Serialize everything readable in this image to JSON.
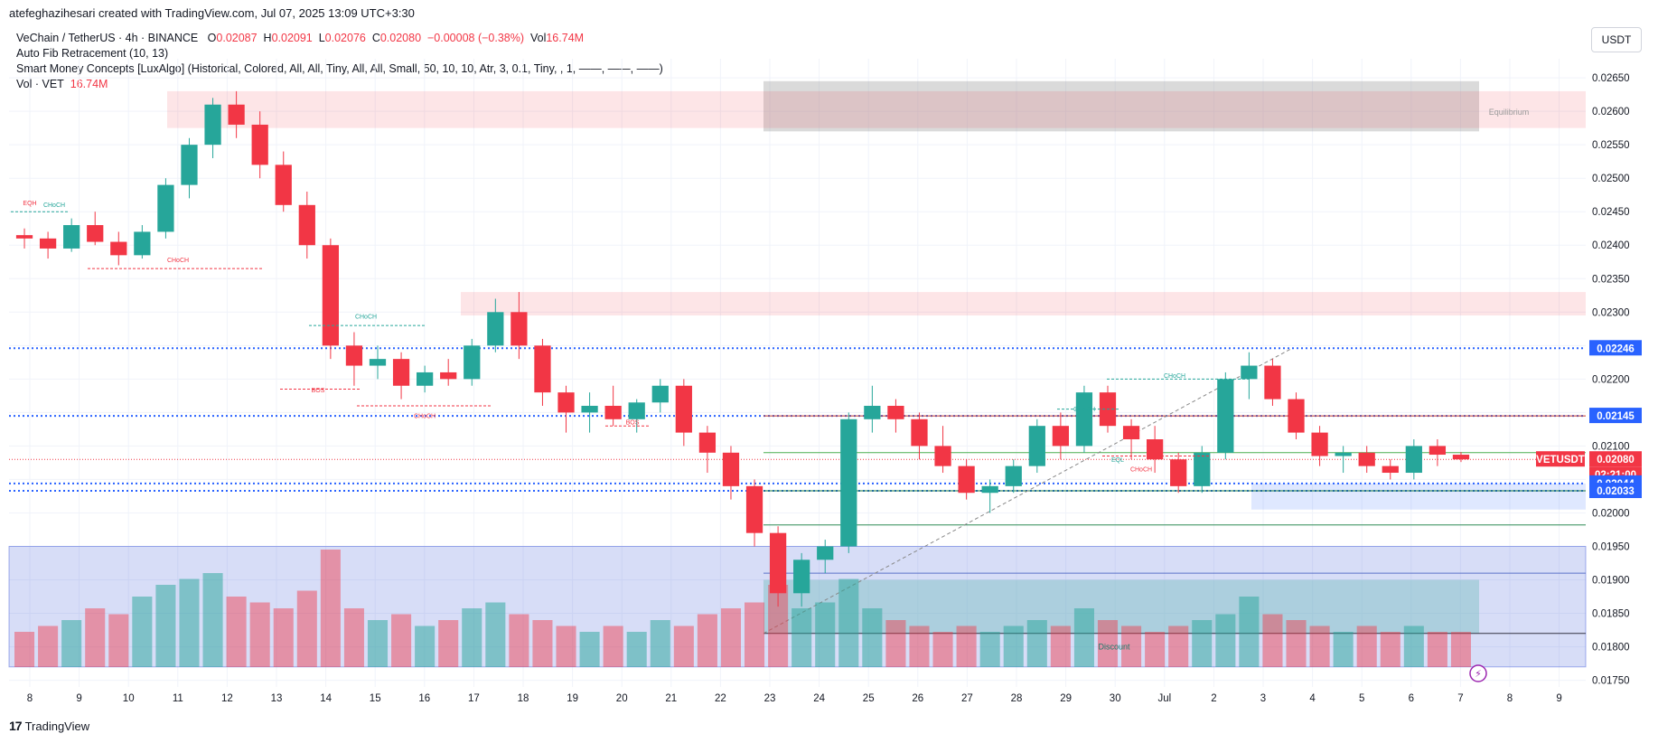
{
  "header": {
    "credit": "atefeghazihesari created with TradingView.com, Jul 07, 2025 13:09 UTC+3:30"
  },
  "legend": {
    "symbol": "VeChain / TetherUS · 4h · BINANCE",
    "o_label": "O",
    "o_value": "0.02087",
    "h_label": "H",
    "h_value": "0.02091",
    "l_label": "L",
    "l_value": "0.02076",
    "c_label": "C",
    "c_value": "0.02080",
    "change": "−0.00008 (−0.38%)",
    "vol_label": "Vol",
    "vol_value": "16.74M",
    "indicator1": "Auto Fib Retracement (10, 13)",
    "indicator2": "Smart Money Concepts [LuxAlgo] (Historical, Colored, All, All, Tiny, All, All, Small, 50, 10, 10, Atr, 3, 0.1, Tiny, , 1, ——, ——, ——)",
    "indicator3_label": "Vol · VET",
    "indicator3_value": "16.74M"
  },
  "currency": "USDT",
  "footer": {
    "brand": "TradingView"
  },
  "colors": {
    "up": "#26a69a",
    "down": "#f23645",
    "dotted": "#2962ff"
  },
  "chart_data": {
    "type": "candlestick",
    "timeframe": "4h",
    "ylim": [
      0.0174,
      0.02665
    ],
    "yticks": [
      "0.02650",
      "0.02600",
      "0.02550",
      "0.02500",
      "0.02450",
      "0.02400",
      "0.02350",
      "0.02300",
      "0.02250",
      "0.02200",
      "0.02150",
      "0.02100",
      "0.02050",
      "0.02000",
      "0.01950",
      "0.01900",
      "0.01850",
      "0.01800",
      "0.01750"
    ],
    "xticks": [
      "8",
      "9",
      "10",
      "11",
      "12",
      "13",
      "14",
      "15",
      "16",
      "17",
      "18",
      "19",
      "20",
      "21",
      "22",
      "23",
      "24",
      "25",
      "26",
      "27",
      "28",
      "29",
      "30",
      "Jul",
      "2",
      "3",
      "4",
      "5",
      "6",
      "7",
      "8",
      "9"
    ],
    "price_labels": [
      {
        "text": "0.02246",
        "value": 0.02246,
        "color": "#2962ff"
      },
      {
        "text": "0.02145",
        "value": 0.02145,
        "color": "#2962ff"
      },
      {
        "text": "VETUSDT",
        "value": 0.0208,
        "color": "#f23645"
      },
      {
        "text": "0.02080",
        "value": 0.0208,
        "color": "#f23645"
      },
      {
        "text": "02:21:00",
        "value": 0.0208,
        "color": "#f23645"
      },
      {
        "text": "0.02044",
        "value": 0.02044,
        "color": "#2962ff"
      },
      {
        "text": "0.02033",
        "value": 0.02033,
        "color": "#2962ff"
      }
    ],
    "zone_labels": [
      "Equilibrium",
      "Discount"
    ],
    "structure_labels": [
      "EQH",
      "CHoCH",
      "CHoCH",
      "CHoCH",
      "BOS",
      "CHoCH",
      "BOS",
      "CHoCH",
      "CHoCH",
      "EQL",
      "CHoCH"
    ],
    "candles_sampled": [
      [
        0.02415,
        0.02425,
        0.02395,
        0.0241
      ],
      [
        0.0241,
        0.0242,
        0.0238,
        0.02395
      ],
      [
        0.02395,
        0.0244,
        0.0239,
        0.0243
      ],
      [
        0.0243,
        0.0245,
        0.024,
        0.02405
      ],
      [
        0.02405,
        0.0242,
        0.0237,
        0.02385
      ],
      [
        0.02385,
        0.0243,
        0.0238,
        0.0242
      ],
      [
        0.0242,
        0.025,
        0.0241,
        0.0249
      ],
      [
        0.0249,
        0.0256,
        0.0247,
        0.0255
      ],
      [
        0.0255,
        0.0262,
        0.0253,
        0.0261
      ],
      [
        0.0261,
        0.0263,
        0.0256,
        0.0258
      ],
      [
        0.0258,
        0.026,
        0.025,
        0.0252
      ],
      [
        0.0252,
        0.0254,
        0.0245,
        0.0246
      ],
      [
        0.0246,
        0.0248,
        0.0238,
        0.024
      ],
      [
        0.024,
        0.0241,
        0.0223,
        0.0225
      ],
      [
        0.0225,
        0.0227,
        0.0219,
        0.0222
      ],
      [
        0.0222,
        0.0225,
        0.022,
        0.0223
      ],
      [
        0.0223,
        0.0224,
        0.0217,
        0.0219
      ],
      [
        0.0219,
        0.0222,
        0.0218,
        0.0221
      ],
      [
        0.0221,
        0.0223,
        0.0219,
        0.022
      ],
      [
        0.022,
        0.0226,
        0.0219,
        0.0225
      ],
      [
        0.0225,
        0.0232,
        0.0224,
        0.023
      ],
      [
        0.023,
        0.0233,
        0.0223,
        0.0225
      ],
      [
        0.0225,
        0.0226,
        0.0216,
        0.0218
      ],
      [
        0.0218,
        0.0219,
        0.0212,
        0.0215
      ],
      [
        0.0215,
        0.0218,
        0.0212,
        0.0216
      ],
      [
        0.0216,
        0.0219,
        0.0213,
        0.0214
      ],
      [
        0.0214,
        0.0217,
        0.0212,
        0.02165
      ],
      [
        0.02165,
        0.022,
        0.0215,
        0.0219
      ],
      [
        0.0219,
        0.022,
        0.021,
        0.0212
      ],
      [
        0.0212,
        0.0213,
        0.0206,
        0.0209
      ],
      [
        0.0209,
        0.021,
        0.0202,
        0.0204
      ],
      [
        0.0204,
        0.0205,
        0.0195,
        0.0197
      ],
      [
        0.0197,
        0.0198,
        0.0186,
        0.0188
      ],
      [
        0.0188,
        0.0194,
        0.0186,
        0.0193
      ],
      [
        0.0193,
        0.0196,
        0.0191,
        0.0195
      ],
      [
        0.0195,
        0.0215,
        0.0194,
        0.0214
      ],
      [
        0.0214,
        0.0219,
        0.0212,
        0.0216
      ],
      [
        0.0216,
        0.0217,
        0.0212,
        0.0214
      ],
      [
        0.0214,
        0.0215,
        0.0208,
        0.021
      ],
      [
        0.021,
        0.0213,
        0.0206,
        0.0207
      ],
      [
        0.0207,
        0.0208,
        0.0202,
        0.0203
      ],
      [
        0.0203,
        0.0205,
        0.02,
        0.0204
      ],
      [
        0.0204,
        0.0208,
        0.0203,
        0.0207
      ],
      [
        0.0207,
        0.0214,
        0.0206,
        0.0213
      ],
      [
        0.0213,
        0.0215,
        0.0208,
        0.021
      ],
      [
        0.021,
        0.0219,
        0.0209,
        0.0218
      ],
      [
        0.0218,
        0.0219,
        0.0212,
        0.0213
      ],
      [
        0.0213,
        0.0214,
        0.0208,
        0.0211
      ],
      [
        0.0211,
        0.0213,
        0.0206,
        0.0208
      ],
      [
        0.0208,
        0.0209,
        0.0203,
        0.0204
      ],
      [
        0.0204,
        0.021,
        0.0203,
        0.0209
      ],
      [
        0.0209,
        0.0221,
        0.0208,
        0.022
      ],
      [
        0.022,
        0.0224,
        0.0217,
        0.0222
      ],
      [
        0.0222,
        0.0223,
        0.0216,
        0.0217
      ],
      [
        0.0217,
        0.0218,
        0.0211,
        0.0212
      ],
      [
        0.0212,
        0.0213,
        0.0207,
        0.02085
      ],
      [
        0.02085,
        0.021,
        0.0206,
        0.0209
      ],
      [
        0.0209,
        0.021,
        0.0206,
        0.0207
      ],
      [
        0.0207,
        0.0208,
        0.0205,
        0.0206
      ],
      [
        0.0206,
        0.0211,
        0.0205,
        0.021
      ],
      [
        0.021,
        0.0211,
        0.0207,
        0.02087
      ],
      [
        0.02087,
        0.02091,
        0.02076,
        0.0208
      ]
    ],
    "volume_sampled": [
      0.3,
      0.35,
      0.4,
      0.5,
      0.45,
      0.6,
      0.7,
      0.75,
      0.8,
      0.6,
      0.55,
      0.5,
      0.65,
      1.0,
      0.5,
      0.4,
      0.45,
      0.35,
      0.4,
      0.5,
      0.55,
      0.45,
      0.4,
      0.35,
      0.3,
      0.35,
      0.3,
      0.4,
      0.35,
      0.45,
      0.5,
      0.55,
      0.7,
      0.5,
      0.55,
      0.75,
      0.5,
      0.4,
      0.35,
      0.3,
      0.35,
      0.3,
      0.35,
      0.4,
      0.35,
      0.5,
      0.4,
      0.35,
      0.3,
      0.35,
      0.4,
      0.45,
      0.6,
      0.45,
      0.4,
      0.35,
      0.3,
      0.35,
      0.3,
      0.35,
      0.3,
      0.3
    ]
  }
}
